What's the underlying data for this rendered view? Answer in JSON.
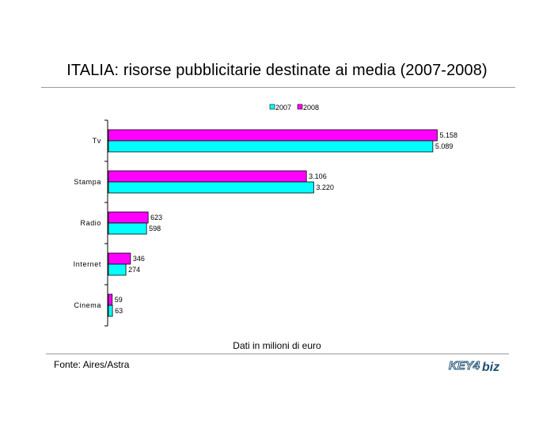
{
  "colors": {
    "s2007": "#00ffff",
    "s2008": "#ff00ff"
  },
  "source": "Fonte: Aires/Astra",
  "logo": {
    "part1": "KEY4",
    "part2": "biz"
  },
  "chart_data": {
    "type": "bar",
    "orientation": "horizontal",
    "title": "ITALIA: risorse pubblicitarie destinate ai media (2007-2008)",
    "xlabel": "Dati in milioni di euro",
    "ylabel": "",
    "categories": [
      "Tv",
      "Stampa",
      "Radio",
      "Internet",
      "Cinema"
    ],
    "series": [
      {
        "name": "2007",
        "values": [
          5089,
          3220,
          598,
          274,
          63
        ],
        "labels": [
          "5.089",
          "3.220",
          "598",
          "274",
          "63"
        ]
      },
      {
        "name": "2008",
        "values": [
          5158,
          3106,
          623,
          346,
          59
        ],
        "labels": [
          "5.158",
          "3.106",
          "623",
          "346",
          "59"
        ]
      }
    ],
    "legend_order": [
      "2007",
      "2008"
    ],
    "legend_position": "top-center",
    "xlim": [
      0,
      5500
    ],
    "grid": false
  }
}
